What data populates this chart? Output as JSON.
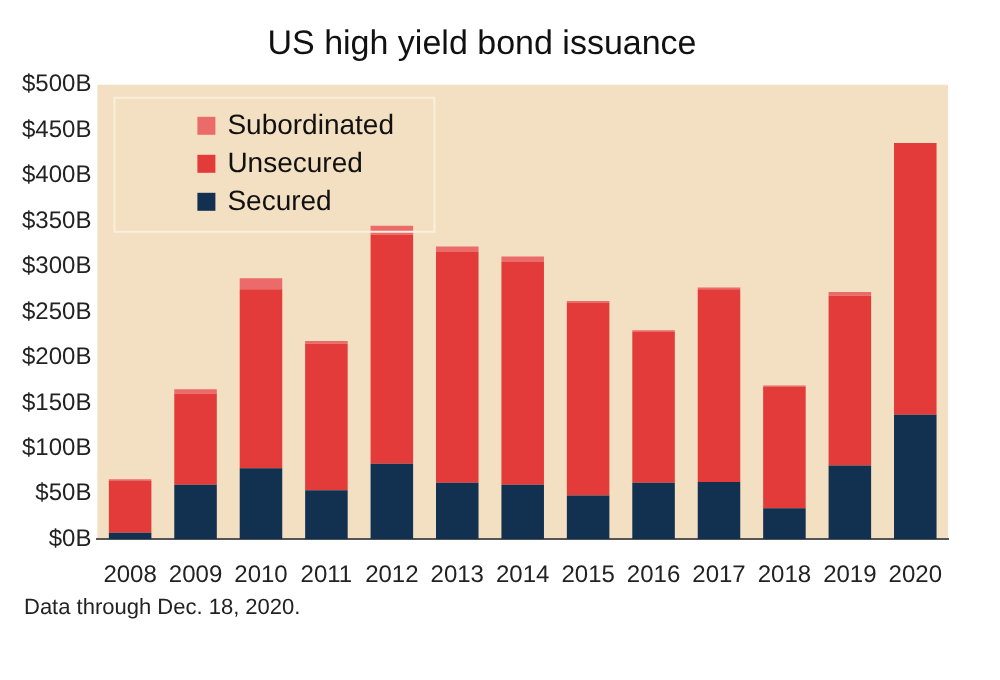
{
  "chart_data": {
    "type": "bar",
    "title": "US high yield bond issuance",
    "stacked": true,
    "legend": "top left",
    "grid": false,
    "categories": [
      "2008",
      "2009",
      "2010",
      "2011",
      "2012",
      "2013",
      "2014",
      "2015",
      "2016",
      "2017",
      "2018",
      "2019",
      "2020"
    ],
    "series": [
      {
        "name": "Secured",
        "color": "#12304f",
        "values": [
          7,
          60,
          78,
          54,
          83,
          62,
          60,
          48,
          62,
          63,
          34,
          81,
          137
        ]
      },
      {
        "name": "Unsecured",
        "color": "#e23b3a",
        "values": [
          57,
          100,
          197,
          161,
          252,
          254,
          245,
          212,
          166,
          212,
          134,
          187,
          299
        ]
      },
      {
        "name": "Subordinated",
        "color": "#ea6b6a",
        "values": [
          2,
          5,
          12,
          3,
          10,
          6,
          6,
          2,
          2,
          2,
          1,
          4,
          0
        ]
      }
    ],
    "ylim": [
      0,
      500
    ],
    "yticks": [
      {
        "value": 0,
        "label": "$0B"
      },
      {
        "value": 50,
        "label": "$50B"
      },
      {
        "value": 100,
        "label": "$100B"
      },
      {
        "value": 150,
        "label": "$150B"
      },
      {
        "value": 200,
        "label": "$200B"
      },
      {
        "value": 250,
        "label": "$250B"
      },
      {
        "value": 300,
        "label": "$300B"
      },
      {
        "value": 350,
        "label": "$350B"
      },
      {
        "value": 400,
        "label": "$400B"
      },
      {
        "value": 450,
        "label": "$450B"
      },
      {
        "value": 500,
        "label": "$500B"
      }
    ],
    "annotations": [
      "Data through Dec. 18, 2020."
    ]
  }
}
